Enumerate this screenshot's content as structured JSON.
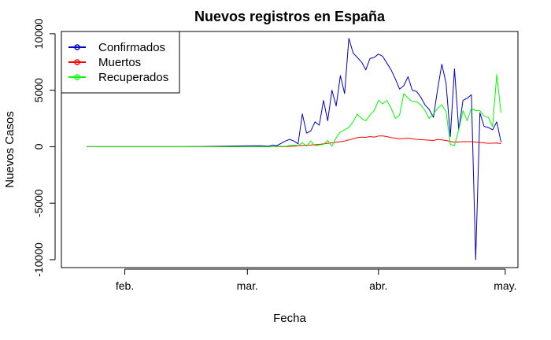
{
  "chart_data": {
    "type": "line",
    "title": "Nuevos registros en España",
    "xlabel": "Fecha",
    "ylabel": "Nuevos Casos",
    "x_ticks": [
      {
        "label": "feb.",
        "date": "2020-02-01"
      },
      {
        "label": "mar.",
        "date": "2020-03-01"
      },
      {
        "label": "abr.",
        "date": "2020-04-01"
      },
      {
        "label": "may.",
        "date": "2020-05-01"
      }
    ],
    "y_ticks": [
      -10000,
      -5000,
      0,
      5000,
      10000
    ],
    "xlim": [
      "2020-01-17",
      "2020-05-04"
    ],
    "ylim": [
      -10700,
      10200
    ],
    "grid": false,
    "legend_position": "top-left",
    "series": [
      {
        "name": "Confirmados",
        "color": "#0000CD",
        "points": [
          [
            "2020-01-23",
            0
          ],
          [
            "2020-02-15",
            0
          ],
          [
            "2020-03-01",
            80
          ],
          [
            "2020-03-04",
            90
          ],
          [
            "2020-03-06",
            60
          ],
          [
            "2020-03-07",
            150
          ],
          [
            "2020-03-08",
            100
          ],
          [
            "2020-03-09",
            300
          ],
          [
            "2020-03-10",
            500
          ],
          [
            "2020-03-11",
            650
          ],
          [
            "2020-03-12",
            500
          ],
          [
            "2020-03-13",
            250
          ],
          [
            "2020-03-14",
            2900
          ],
          [
            "2020-03-15",
            1200
          ],
          [
            "2020-03-16",
            1400
          ],
          [
            "2020-03-17",
            2200
          ],
          [
            "2020-03-18",
            1900
          ],
          [
            "2020-03-19",
            4100
          ],
          [
            "2020-03-20",
            2300
          ],
          [
            "2020-03-21",
            5000
          ],
          [
            "2020-03-22",
            3600
          ],
          [
            "2020-03-23",
            6300
          ],
          [
            "2020-03-24",
            4700
          ],
          [
            "2020-03-25",
            9600
          ],
          [
            "2020-03-26",
            8300
          ],
          [
            "2020-03-27",
            7900
          ],
          [
            "2020-03-28",
            7500
          ],
          [
            "2020-03-29",
            6800
          ],
          [
            "2020-03-30",
            7800
          ],
          [
            "2020-03-31",
            7900
          ],
          [
            "2020-04-01",
            8200
          ],
          [
            "2020-04-02",
            8000
          ],
          [
            "2020-04-03",
            7400
          ],
          [
            "2020-04-04",
            6800
          ],
          [
            "2020-04-05",
            6000
          ],
          [
            "2020-04-06",
            5100
          ],
          [
            "2020-04-07",
            5400
          ],
          [
            "2020-04-08",
            6200
          ],
          [
            "2020-04-09",
            5000
          ],
          [
            "2020-04-10",
            4900
          ],
          [
            "2020-04-11",
            4400
          ],
          [
            "2020-04-12",
            3700
          ],
          [
            "2020-04-13",
            3300
          ],
          [
            "2020-04-14",
            2600
          ],
          [
            "2020-04-15",
            5100
          ],
          [
            "2020-04-16",
            7300
          ],
          [
            "2020-04-17",
            5600
          ],
          [
            "2020-04-18",
            900
          ],
          [
            "2020-04-19",
            6900
          ],
          [
            "2020-04-20",
            1500
          ],
          [
            "2020-04-21",
            4100
          ],
          [
            "2020-04-22",
            4300
          ],
          [
            "2020-04-23",
            4600
          ],
          [
            "2020-04-24",
            -10000
          ],
          [
            "2020-04-25",
            3000
          ],
          [
            "2020-04-26",
            1800
          ],
          [
            "2020-04-27",
            1700
          ],
          [
            "2020-04-28",
            1500
          ],
          [
            "2020-04-29",
            2200
          ],
          [
            "2020-04-30",
            400
          ]
        ]
      },
      {
        "name": "Muertos",
        "color": "#FF0000",
        "points": [
          [
            "2020-01-23",
            0
          ],
          [
            "2020-03-07",
            0
          ],
          [
            "2020-03-10",
            10
          ],
          [
            "2020-03-12",
            50
          ],
          [
            "2020-03-14",
            120
          ],
          [
            "2020-03-16",
            150
          ],
          [
            "2020-03-18",
            200
          ],
          [
            "2020-03-20",
            300
          ],
          [
            "2020-03-22",
            400
          ],
          [
            "2020-03-24",
            500
          ],
          [
            "2020-03-26",
            700
          ],
          [
            "2020-03-27",
            800
          ],
          [
            "2020-03-28",
            850
          ],
          [
            "2020-03-29",
            830
          ],
          [
            "2020-03-30",
            900
          ],
          [
            "2020-03-31",
            850
          ],
          [
            "2020-04-01",
            950
          ],
          [
            "2020-04-02",
            950
          ],
          [
            "2020-04-03",
            900
          ],
          [
            "2020-04-04",
            800
          ],
          [
            "2020-04-06",
            700
          ],
          [
            "2020-04-08",
            750
          ],
          [
            "2020-04-10",
            650
          ],
          [
            "2020-04-12",
            600
          ],
          [
            "2020-04-14",
            550
          ],
          [
            "2020-04-15",
            650
          ],
          [
            "2020-04-16",
            600
          ],
          [
            "2020-04-17",
            550
          ],
          [
            "2020-04-19",
            400
          ],
          [
            "2020-04-21",
            450
          ],
          [
            "2020-04-23",
            450
          ],
          [
            "2020-04-25",
            380
          ],
          [
            "2020-04-27",
            300
          ],
          [
            "2020-04-29",
            320
          ],
          [
            "2020-04-30",
            270
          ]
        ]
      },
      {
        "name": "Recuperados",
        "color": "#00FF00",
        "points": [
          [
            "2020-01-23",
            0
          ],
          [
            "2020-03-06",
            0
          ],
          [
            "2020-03-08",
            30
          ],
          [
            "2020-03-10",
            50
          ],
          [
            "2020-03-12",
            150
          ],
          [
            "2020-03-13",
            100
          ],
          [
            "2020-03-14",
            350
          ],
          [
            "2020-03-15",
            50
          ],
          [
            "2020-03-16",
            500
          ],
          [
            "2020-03-17",
            100
          ],
          [
            "2020-03-18",
            150
          ],
          [
            "2020-03-19",
            200
          ],
          [
            "2020-03-20",
            550
          ],
          [
            "2020-03-21",
            50
          ],
          [
            "2020-03-22",
            800
          ],
          [
            "2020-03-23",
            1300
          ],
          [
            "2020-03-24",
            1500
          ],
          [
            "2020-03-25",
            1700
          ],
          [
            "2020-03-26",
            2200
          ],
          [
            "2020-03-27",
            2900
          ],
          [
            "2020-03-28",
            2500
          ],
          [
            "2020-03-29",
            2300
          ],
          [
            "2020-03-30",
            2800
          ],
          [
            "2020-03-31",
            3200
          ],
          [
            "2020-04-01",
            4100
          ],
          [
            "2020-04-02",
            3800
          ],
          [
            "2020-04-03",
            4100
          ],
          [
            "2020-04-04",
            3400
          ],
          [
            "2020-04-05",
            2500
          ],
          [
            "2020-04-06",
            2800
          ],
          [
            "2020-04-07",
            4700
          ],
          [
            "2020-04-08",
            4300
          ],
          [
            "2020-04-09",
            4000
          ],
          [
            "2020-04-10",
            4000
          ],
          [
            "2020-04-11",
            3700
          ],
          [
            "2020-04-12",
            3200
          ],
          [
            "2020-04-13",
            2500
          ],
          [
            "2020-04-14",
            2900
          ],
          [
            "2020-04-15",
            3400
          ],
          [
            "2020-04-16",
            3700
          ],
          [
            "2020-04-17",
            3100
          ],
          [
            "2020-04-18",
            200
          ],
          [
            "2020-04-19",
            100
          ],
          [
            "2020-04-20",
            1500
          ],
          [
            "2020-04-21",
            3200
          ],
          [
            "2020-04-22",
            2300
          ],
          [
            "2020-04-23",
            3400
          ],
          [
            "2020-04-24",
            3200
          ],
          [
            "2020-04-25",
            3200
          ],
          [
            "2020-04-26",
            2700
          ],
          [
            "2020-04-27",
            2600
          ],
          [
            "2020-04-28",
            1800
          ],
          [
            "2020-04-29",
            6400
          ],
          [
            "2020-04-30",
            3000
          ]
        ]
      }
    ]
  }
}
